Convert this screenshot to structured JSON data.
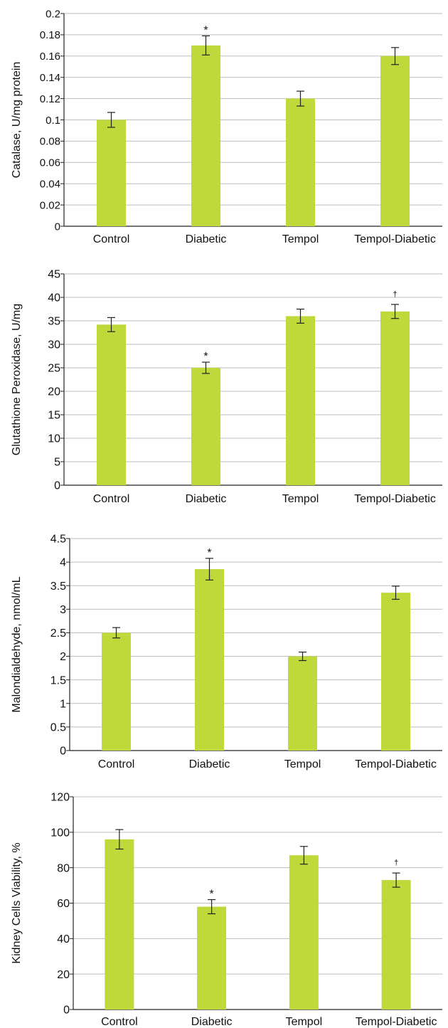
{
  "colors": {
    "bar": "#bfd83a",
    "grid": "#bdbdbd",
    "axis": "#222222",
    "text": "#111111"
  },
  "chart_data": [
    {
      "type": "bar",
      "categories": [
        "Control",
        "Diabetic",
        "Tempol",
        "Tempol-Diabetic"
      ],
      "values": [
        0.1,
        0.17,
        0.12,
        0.16
      ],
      "errors": [
        0.007,
        0.009,
        0.007,
        0.008
      ],
      "markers": [
        "",
        "*",
        "",
        ""
      ],
      "ylabel": "Catalase, U/mg protein",
      "ylim": [
        0,
        0.2
      ],
      "yticks": [
        "0",
        "0.02",
        "0.04",
        "0.06",
        "0.08",
        "0.1",
        "0.12",
        "0.14",
        "0.16",
        "0.18",
        "0.2"
      ],
      "grid": true
    },
    {
      "type": "bar",
      "categories": [
        "Control",
        "Diabetic",
        "Tempol",
        "Tempol-Diabetic"
      ],
      "values": [
        34.2,
        25,
        36,
        37
      ],
      "errors": [
        1.5,
        1.2,
        1.5,
        1.5
      ],
      "markers": [
        "",
        "*",
        "",
        "†"
      ],
      "ylabel": "Glutathione Peroxidase, U/mg",
      "ylim": [
        0,
        45
      ],
      "yticks": [
        "0",
        "5",
        "10",
        "15",
        "20",
        "25",
        "30",
        "35",
        "40",
        "45"
      ],
      "grid": true
    },
    {
      "type": "bar",
      "categories": [
        "Control",
        "Diabetic",
        "Tempol",
        "Tempol-Diabetic"
      ],
      "values": [
        2.5,
        3.85,
        2,
        3.35
      ],
      "errors": [
        0.11,
        0.23,
        0.09,
        0.14
      ],
      "markers": [
        "",
        "*",
        "",
        ""
      ],
      "ylabel": "Malondialdehyde, nmol/mL",
      "ylim": [
        0,
        4.5
      ],
      "yticks": [
        "0",
        "0.5",
        "1",
        "1.5",
        "2",
        "2.5",
        "3",
        "3.5",
        "4",
        "4.5"
      ],
      "grid": true
    },
    {
      "type": "bar",
      "categories": [
        "Control",
        "Diabetic",
        "Tempol",
        "Tempol-Diabetic"
      ],
      "values": [
        96,
        58,
        87,
        73
      ],
      "errors": [
        5.5,
        4,
        5,
        4
      ],
      "markers": [
        "",
        "*",
        "",
        "†"
      ],
      "ylabel": "Kidney Cells Viability, %",
      "ylim": [
        0,
        120
      ],
      "yticks": [
        "0",
        "20",
        "40",
        "60",
        "80",
        "100",
        "120"
      ],
      "grid": true
    }
  ]
}
